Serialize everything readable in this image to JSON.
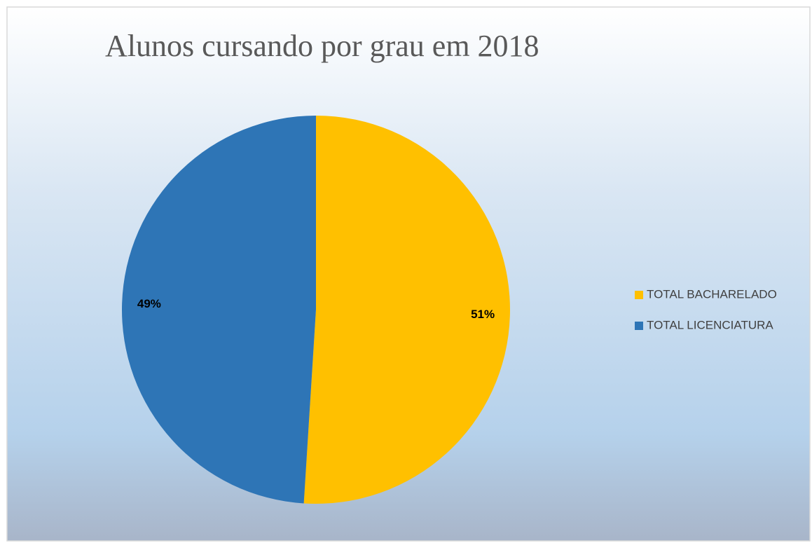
{
  "chart_data": {
    "type": "pie",
    "title": "Alunos cursando por grau em 2018",
    "categories": [
      "TOTAL BACHARELADO",
      "TOTAL LICENCIATURA"
    ],
    "values": [
      51,
      49
    ],
    "value_labels": [
      "51%",
      "49%"
    ],
    "colors": [
      "#ffc000",
      "#2e75b6"
    ],
    "legend": "right"
  }
}
